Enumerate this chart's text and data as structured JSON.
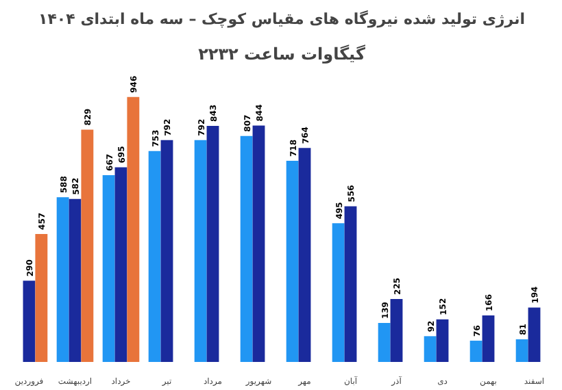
{
  "chart_data": {
    "type": "bar",
    "title": "انرژی تولید شده نیروگاه های مقیاس کوچک – سه ماه ابتدای ۱۴۰۴",
    "subtitle": "۲۲۳۲ گیگاوات ساعت",
    "categories": [
      "فروردین",
      "اردیبهشت",
      "خرداد",
      "تیر",
      "مرداد",
      "شهریور",
      "مهر",
      "آبان",
      "آذر",
      "دی",
      "بهمن",
      "اسفند"
    ],
    "series": [
      {
        "color": "#2196f3",
        "values": [
          null,
          588,
          667,
          753,
          792,
          807,
          718,
          495,
          139,
          92,
          76,
          81
        ]
      },
      {
        "color": "#1a2a9c",
        "values": [
          290,
          582,
          695,
          792,
          843,
          844,
          764,
          556,
          225,
          152,
          166,
          194
        ]
      },
      {
        "color": "#e8743b",
        "values": [
          457,
          829,
          946,
          null,
          null,
          null,
          null,
          null,
          null,
          null,
          null,
          null
        ]
      }
    ],
    "data_labels": true,
    "grid": false
  }
}
